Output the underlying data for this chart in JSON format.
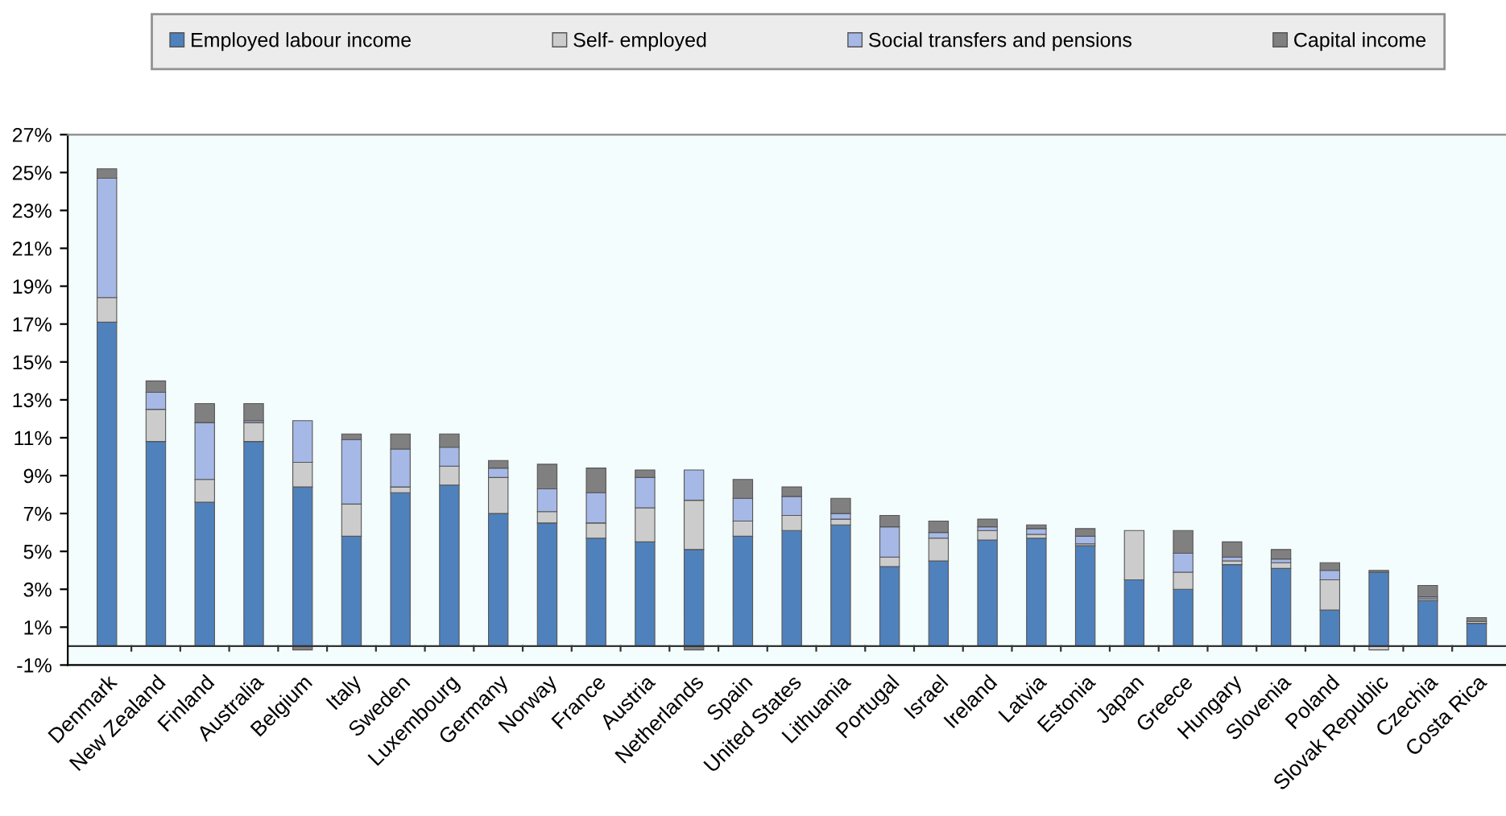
{
  "chart_data": {
    "type": "bar",
    "stacked": true,
    "categories": [
      "Denmark",
      "New Zealand",
      "Finland",
      "Australia",
      "Belgium",
      "Italy",
      "Sweden",
      "Luxembourg",
      "Germany",
      "Norway",
      "France",
      "Austria",
      "Netherlands",
      "Spain",
      "United States",
      "Lithuania",
      "Portugal",
      "Israel",
      "Ireland",
      "Latvia",
      "Estonia",
      "Japan",
      "Greece",
      "Hungary",
      "Slovenia",
      "Poland",
      "Slovak Republic",
      "Czechia",
      "Costa Rica"
    ],
    "series": [
      {
        "name": "Employed labour income",
        "color": "#4f81bd",
        "values": [
          17.1,
          10.8,
          7.6,
          10.8,
          8.4,
          5.8,
          8.1,
          8.5,
          7.0,
          6.5,
          5.7,
          5.5,
          5.1,
          5.8,
          6.1,
          6.4,
          4.2,
          4.5,
          5.6,
          5.7,
          5.3,
          3.5,
          3.0,
          4.3,
          4.1,
          1.9,
          3.9,
          2.4,
          1.2
        ]
      },
      {
        "name": "Self- employed",
        "color": "#cccccc",
        "values": [
          1.3,
          1.7,
          1.2,
          1.0,
          1.3,
          1.7,
          0.3,
          1.0,
          1.9,
          0.6,
          0.8,
          1.8,
          2.6,
          0.8,
          0.8,
          0.3,
          0.5,
          1.2,
          0.5,
          0.2,
          0.1,
          2.6,
          0.9,
          0.2,
          0.3,
          1.6,
          -0.2,
          0.1,
          0.1
        ]
      },
      {
        "name": "Social transfers and pensions",
        "color": "#a6b8e6",
        "values": [
          6.3,
          0.9,
          3.0,
          0.1,
          2.2,
          3.4,
          2.0,
          1.0,
          0.5,
          1.2,
          1.6,
          1.6,
          1.6,
          1.2,
          1.0,
          0.3,
          1.6,
          0.3,
          0.2,
          0.3,
          0.4,
          0,
          1.0,
          0.2,
          0.2,
          0.5,
          0,
          0.1,
          0
        ]
      },
      {
        "name": "Capital income",
        "color": "#808080",
        "values": [
          0.5,
          0.6,
          1.0,
          0.9,
          -0.2,
          0.3,
          0.8,
          0.7,
          0.4,
          1.3,
          1.3,
          0.4,
          -0.2,
          1.0,
          0.5,
          0.8,
          0.6,
          0.6,
          0.4,
          0.2,
          0.4,
          0,
          1.2,
          0.8,
          0.5,
          0.4,
          0.1,
          0.6,
          0.2
        ]
      }
    ],
    "ylim": [
      -1,
      27
    ],
    "yticks": [
      {
        "value": -1,
        "label": "-1%"
      },
      {
        "value": 1,
        "label": "1%"
      },
      {
        "value": 3,
        "label": "3%"
      },
      {
        "value": 5,
        "label": "5%"
      },
      {
        "value": 7,
        "label": "7%"
      },
      {
        "value": 9,
        "label": "9%"
      },
      {
        "value": 11,
        "label": "11%"
      },
      {
        "value": 13,
        "label": "13%"
      },
      {
        "value": 15,
        "label": "15%"
      },
      {
        "value": 17,
        "label": "17%"
      },
      {
        "value": 19,
        "label": "19%"
      },
      {
        "value": 21,
        "label": "21%"
      },
      {
        "value": 23,
        "label": "23%"
      },
      {
        "value": 25,
        "label": "25%"
      },
      {
        "value": 27,
        "label": "27%"
      }
    ],
    "legend": "top",
    "grid": false
  }
}
